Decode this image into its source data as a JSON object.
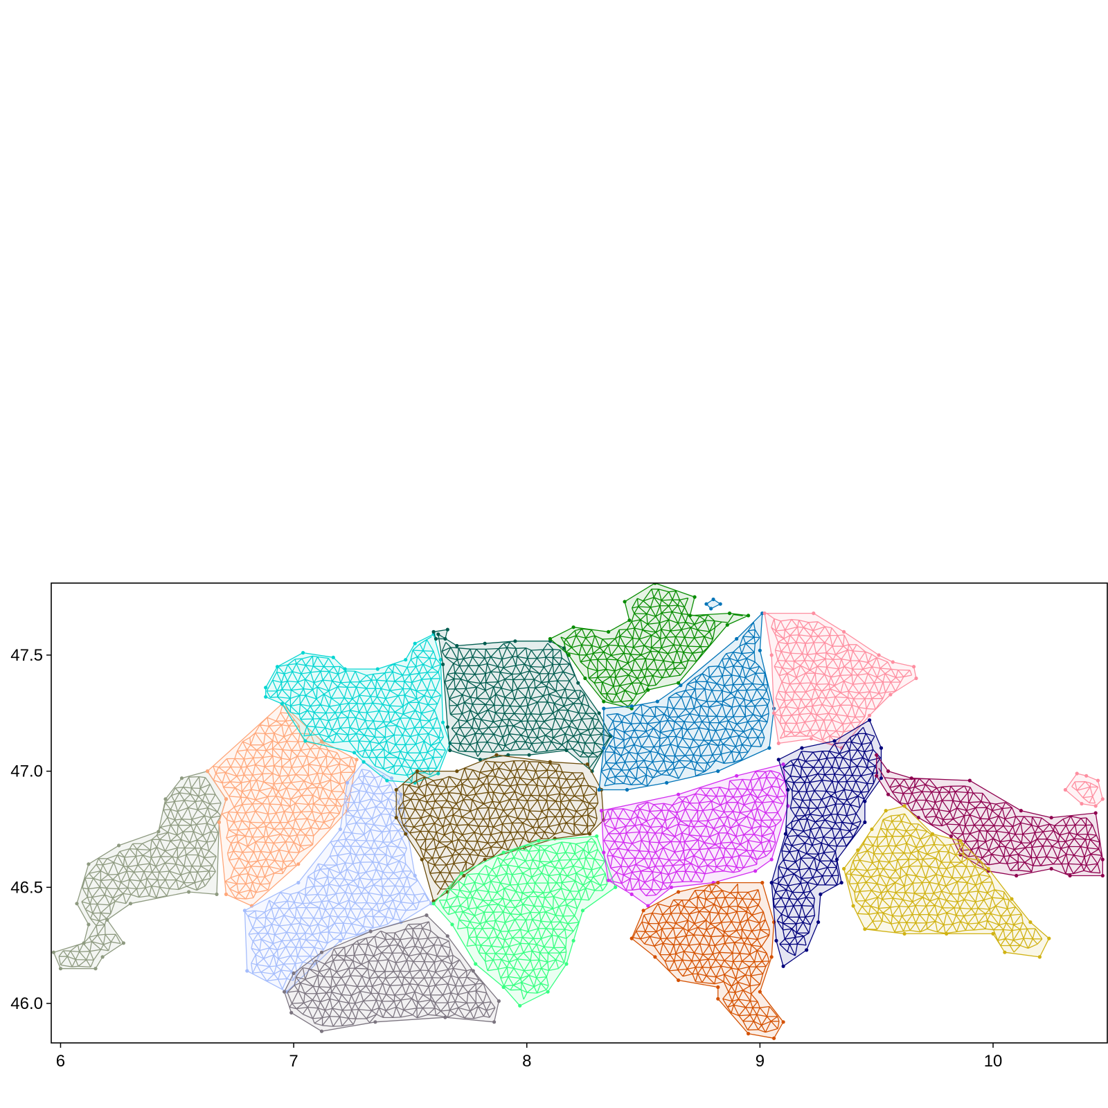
{
  "chart_data": {
    "type": "map",
    "title": "",
    "xlabel": "",
    "ylabel": "",
    "xlim": [
      5.96,
      10.49
    ],
    "ylim": [
      45.83,
      47.81
    ],
    "x_ticks": [
      {
        "value": 6,
        "label": "6"
      },
      {
        "value": 7,
        "label": "7"
      },
      {
        "value": 8,
        "label": "8"
      },
      {
        "value": 9,
        "label": "9"
      },
      {
        "value": 10,
        "label": "10"
      }
    ],
    "y_ticks": [
      {
        "value": 47.5,
        "label": "47.5"
      },
      {
        "value": 47.0,
        "label": "47.0"
      },
      {
        "value": 46.5,
        "label": "46.5"
      },
      {
        "value": 46.0,
        "label": "46.0"
      }
    ],
    "grid": false,
    "legend": "none",
    "mesh_style": "triangulated mesh partitioned into colored regions",
    "regions": [
      {
        "color": "#8e9a80",
        "outline": [
          [
            6.63,
            47.0
          ],
          [
            6.71,
            46.88
          ],
          [
            6.68,
            46.78
          ],
          [
            6.67,
            46.47
          ],
          [
            6.55,
            46.48
          ],
          [
            6.3,
            46.43
          ],
          [
            6.2,
            46.36
          ],
          [
            6.27,
            46.26
          ],
          [
            6.18,
            46.2
          ],
          [
            6.15,
            46.15
          ],
          [
            6.0,
            46.15
          ],
          [
            5.97,
            46.22
          ],
          [
            6.1,
            46.26
          ],
          [
            6.12,
            46.34
          ],
          [
            6.07,
            46.43
          ],
          [
            6.12,
            46.6
          ],
          [
            6.25,
            46.68
          ],
          [
            6.42,
            46.74
          ],
          [
            6.45,
            46.88
          ],
          [
            6.52,
            46.97
          ]
        ]
      },
      {
        "color": "#ffa77a",
        "outline": [
          [
            6.63,
            47.0
          ],
          [
            6.95,
            47.29
          ],
          [
            7.12,
            47.13
          ],
          [
            7.27,
            47.05
          ],
          [
            7.23,
            46.83
          ],
          [
            7.02,
            46.6
          ],
          [
            6.82,
            46.42
          ],
          [
            6.71,
            46.47
          ],
          [
            6.68,
            46.78
          ],
          [
            6.71,
            46.88
          ]
        ]
      },
      {
        "color": "#a5bdfc",
        "outline": [
          [
            7.3,
            47.04
          ],
          [
            7.42,
            46.97
          ],
          [
            7.46,
            46.9
          ],
          [
            7.52,
            46.55
          ],
          [
            7.59,
            46.43
          ],
          [
            7.46,
            46.35
          ],
          [
            7.2,
            46.27
          ],
          [
            6.97,
            46.05
          ],
          [
            6.8,
            46.14
          ],
          [
            6.79,
            46.4
          ],
          [
            7.02,
            46.52
          ],
          [
            7.2,
            46.75
          ],
          [
            7.23,
            46.95
          ]
        ]
      },
      {
        "color": "#7c7580",
        "outline": [
          [
            6.96,
            46.05
          ],
          [
            7.0,
            46.13
          ],
          [
            7.12,
            46.22
          ],
          [
            7.33,
            46.31
          ],
          [
            7.57,
            46.38
          ],
          [
            7.66,
            46.29
          ],
          [
            7.77,
            46.14
          ],
          [
            7.88,
            46.01
          ],
          [
            7.86,
            45.92
          ],
          [
            7.65,
            45.94
          ],
          [
            7.35,
            45.92
          ],
          [
            7.12,
            45.88
          ],
          [
            6.99,
            45.96
          ]
        ]
      },
      {
        "color": "#06d6d2",
        "outline": [
          [
            6.88,
            47.36
          ],
          [
            6.93,
            47.45
          ],
          [
            7.04,
            47.51
          ],
          [
            7.17,
            47.49
          ],
          [
            7.22,
            47.44
          ],
          [
            7.36,
            47.44
          ],
          [
            7.48,
            47.48
          ],
          [
            7.52,
            47.55
          ],
          [
            7.6,
            47.59
          ],
          [
            7.63,
            47.48
          ],
          [
            7.64,
            47.21
          ],
          [
            7.67,
            47.12
          ],
          [
            7.62,
            46.99
          ],
          [
            7.52,
            46.95
          ],
          [
            7.4,
            46.96
          ],
          [
            7.3,
            47.04
          ],
          [
            7.26,
            47.08
          ],
          [
            7.05,
            47.13
          ],
          [
            6.95,
            47.29
          ],
          [
            6.88,
            47.32
          ]
        ]
      },
      {
        "color": "#005c4f",
        "outline": [
          [
            7.62,
            47.59
          ],
          [
            7.64,
            47.46
          ],
          [
            7.66,
            47.19
          ],
          [
            7.67,
            47.09
          ],
          [
            7.8,
            47.05
          ],
          [
            7.92,
            47.07
          ],
          [
            8.01,
            47.07
          ],
          [
            8.17,
            47.09
          ],
          [
            8.28,
            47.0
          ],
          [
            8.36,
            47.15
          ],
          [
            8.31,
            47.25
          ],
          [
            8.22,
            47.38
          ],
          [
            8.16,
            47.53
          ],
          [
            8.1,
            47.56
          ],
          [
            7.95,
            47.56
          ],
          [
            7.82,
            47.55
          ],
          [
            7.7,
            47.54
          ]
        ]
      },
      {
        "color": "#6b4c0a",
        "outline": [
          [
            7.44,
            46.92
          ],
          [
            7.53,
            47.0
          ],
          [
            7.7,
            47.0
          ],
          [
            7.87,
            47.07
          ],
          [
            8.1,
            47.04
          ],
          [
            8.26,
            47.03
          ],
          [
            8.32,
            46.92
          ],
          [
            8.33,
            46.79
          ],
          [
            8.27,
            46.73
          ],
          [
            8.12,
            46.71
          ],
          [
            7.99,
            46.67
          ],
          [
            7.82,
            46.62
          ],
          [
            7.73,
            46.55
          ],
          [
            7.66,
            46.48
          ],
          [
            7.6,
            46.44
          ],
          [
            7.55,
            46.62
          ],
          [
            7.48,
            46.73
          ],
          [
            7.44,
            46.8
          ]
        ]
      },
      {
        "color": "#36ff81",
        "outline": [
          [
            7.6,
            46.43
          ],
          [
            7.72,
            46.56
          ],
          [
            7.9,
            46.65
          ],
          [
            8.05,
            46.7
          ],
          [
            8.3,
            46.72
          ],
          [
            8.38,
            46.5
          ],
          [
            8.24,
            46.4
          ],
          [
            8.2,
            46.27
          ],
          [
            8.17,
            46.17
          ],
          [
            8.09,
            46.05
          ],
          [
            7.97,
            45.99
          ],
          [
            7.9,
            46.07
          ],
          [
            7.78,
            46.17
          ],
          [
            7.68,
            46.34
          ]
        ]
      },
      {
        "color": "#078c00",
        "outline": [
          [
            8.1,
            47.57
          ],
          [
            8.2,
            47.62
          ],
          [
            8.35,
            47.6
          ],
          [
            8.44,
            47.65
          ],
          [
            8.42,
            47.73
          ],
          [
            8.55,
            47.81
          ],
          [
            8.72,
            47.75
          ],
          [
            8.7,
            47.67
          ],
          [
            8.87,
            47.68
          ],
          [
            8.95,
            47.67
          ],
          [
            8.86,
            47.63
          ],
          [
            8.65,
            47.38
          ],
          [
            8.52,
            47.35
          ],
          [
            8.45,
            47.27
          ],
          [
            8.33,
            47.3
          ],
          [
            8.25,
            47.4
          ],
          [
            8.18,
            47.5
          ]
        ]
      },
      {
        "color": "#0174b8",
        "outline": [
          [
            8.33,
            47.27
          ],
          [
            8.45,
            47.28
          ],
          [
            8.56,
            47.3
          ],
          [
            8.66,
            47.37
          ],
          [
            8.9,
            47.57
          ],
          [
            9.01,
            47.68
          ],
          [
            9.0,
            47.52
          ],
          [
            9.06,
            47.27
          ],
          [
            9.04,
            47.1
          ],
          [
            8.82,
            47.0
          ],
          [
            8.6,
            46.95
          ],
          [
            8.43,
            46.92
          ],
          [
            8.31,
            46.92
          ],
          [
            8.33,
            47.1
          ]
        ]
      },
      {
        "color": "#fe8ea0",
        "outline": [
          [
            9.02,
            47.68
          ],
          [
            9.23,
            47.68
          ],
          [
            9.36,
            47.6
          ],
          [
            9.51,
            47.5
          ],
          [
            9.57,
            47.47
          ],
          [
            9.66,
            47.45
          ],
          [
            9.67,
            47.4
          ],
          [
            9.56,
            47.33
          ],
          [
            9.47,
            47.24
          ],
          [
            9.35,
            47.1
          ],
          [
            9.22,
            47.14
          ],
          [
            9.08,
            47.12
          ],
          [
            9.06,
            47.25
          ],
          [
            9.05,
            47.5
          ]
        ]
      },
      {
        "color": "#d22cf0",
        "outline": [
          [
            8.32,
            46.83
          ],
          [
            8.33,
            46.65
          ],
          [
            8.35,
            46.53
          ],
          [
            8.45,
            46.47
          ],
          [
            8.52,
            46.42
          ],
          [
            8.62,
            46.5
          ],
          [
            8.8,
            46.52
          ],
          [
            8.98,
            46.57
          ],
          [
            9.05,
            46.62
          ],
          [
            9.12,
            46.85
          ],
          [
            9.1,
            47.03
          ],
          [
            8.9,
            46.98
          ],
          [
            8.65,
            46.9
          ]
        ]
      },
      {
        "color": "#d45100",
        "outline": [
          [
            8.45,
            46.28
          ],
          [
            8.55,
            46.2
          ],
          [
            8.65,
            46.1
          ],
          [
            8.82,
            46.07
          ],
          [
            8.82,
            46.02
          ],
          [
            8.95,
            45.87
          ],
          [
            9.06,
            45.85
          ],
          [
            9.1,
            45.92
          ],
          [
            9.0,
            46.05
          ],
          [
            9.05,
            46.2
          ],
          [
            9.06,
            46.35
          ],
          [
            9.01,
            46.52
          ],
          [
            8.82,
            46.52
          ],
          [
            8.65,
            46.48
          ],
          [
            8.5,
            46.4
          ]
        ]
      },
      {
        "color": "#00007c",
        "outline": [
          [
            9.08,
            47.05
          ],
          [
            9.18,
            47.1
          ],
          [
            9.32,
            47.13
          ],
          [
            9.47,
            47.22
          ],
          [
            9.52,
            47.1
          ],
          [
            9.52,
            46.97
          ],
          [
            9.45,
            46.87
          ],
          [
            9.45,
            46.78
          ],
          [
            9.33,
            46.62
          ],
          [
            9.35,
            46.52
          ],
          [
            9.26,
            46.47
          ],
          [
            9.25,
            46.35
          ],
          [
            9.2,
            46.23
          ],
          [
            9.1,
            46.16
          ],
          [
            9.07,
            46.27
          ],
          [
            9.05,
            46.52
          ],
          [
            9.11,
            46.73
          ],
          [
            9.12,
            46.92
          ]
        ]
      },
      {
        "color": "#8e004f",
        "outline": [
          [
            9.5,
            47.07
          ],
          [
            9.55,
            47.0
          ],
          [
            9.65,
            46.97
          ],
          [
            9.9,
            46.96
          ],
          [
            10.12,
            46.83
          ],
          [
            10.25,
            46.8
          ],
          [
            10.44,
            46.82
          ],
          [
            10.47,
            46.62
          ],
          [
            10.47,
            46.55
          ],
          [
            10.33,
            46.55
          ],
          [
            10.25,
            46.58
          ],
          [
            10.1,
            46.55
          ],
          [
            9.98,
            46.57
          ],
          [
            9.86,
            46.64
          ],
          [
            9.82,
            46.72
          ],
          [
            9.68,
            46.8
          ],
          [
            9.55,
            46.9
          ],
          [
            9.5,
            46.98
          ]
        ]
      },
      {
        "color": "#d0b213",
        "outline": [
          [
            9.48,
            46.75
          ],
          [
            9.54,
            46.83
          ],
          [
            9.62,
            46.85
          ],
          [
            9.74,
            46.73
          ],
          [
            9.86,
            46.7
          ],
          [
            9.98,
            46.58
          ],
          [
            10.08,
            46.45
          ],
          [
            10.16,
            46.35
          ],
          [
            10.24,
            46.28
          ],
          [
            10.2,
            46.2
          ],
          [
            10.05,
            46.22
          ],
          [
            10.0,
            46.3
          ],
          [
            9.8,
            46.3
          ],
          [
            9.62,
            46.3
          ],
          [
            9.45,
            46.32
          ],
          [
            9.4,
            46.42
          ],
          [
            9.36,
            46.58
          ],
          [
            9.42,
            46.66
          ]
        ]
      },
      {
        "color": "#0174b8",
        "outline": [
          [
            8.77,
            47.72
          ],
          [
            8.8,
            47.74
          ],
          [
            8.83,
            47.72
          ],
          [
            8.79,
            47.7
          ]
        ]
      },
      {
        "color": "#005c4f",
        "outline": [
          [
            7.6,
            47.6
          ],
          [
            7.66,
            47.61
          ],
          [
            7.65,
            47.57
          ],
          [
            7.61,
            47.57
          ]
        ]
      },
      {
        "color": "#fe8ea0",
        "outline": [
          [
            10.31,
            46.92
          ],
          [
            10.36,
            46.99
          ],
          [
            10.4,
            46.98
          ],
          [
            10.45,
            46.96
          ],
          [
            10.47,
            46.88
          ],
          [
            10.44,
            46.85
          ],
          [
            10.38,
            46.86
          ]
        ]
      }
    ]
  }
}
